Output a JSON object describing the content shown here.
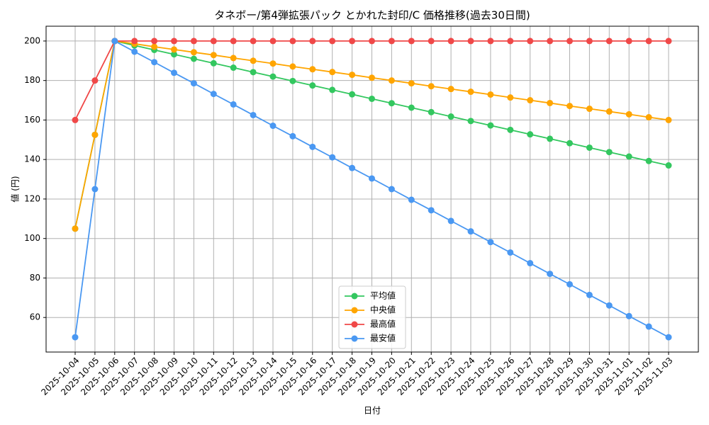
{
  "chart_data": {
    "type": "line",
    "title": "タネボー/第4弾拡張パック とかれた封印/C 価格推移(過去30日間)",
    "x_label": "日付",
    "y_label": "値 (円)",
    "categories": [
      "2025-10-04",
      "2025-10-05",
      "2025-10-06",
      "2025-10-07",
      "2025-10-08",
      "2025-10-09",
      "2025-10-10",
      "2025-10-11",
      "2025-10-12",
      "2025-10-13",
      "2025-10-14",
      "2025-10-15",
      "2025-10-16",
      "2025-10-17",
      "2025-10-18",
      "2025-10-19",
      "2025-10-20",
      "2025-10-21",
      "2025-10-22",
      "2025-10-23",
      "2025-10-24",
      "2025-10-25",
      "2025-10-26",
      "2025-10-27",
      "2025-10-28",
      "2025-10-29",
      "2025-10-30",
      "2025-10-31",
      "2025-11-01",
      "2025-11-02",
      "2025-11-03"
    ],
    "series": [
      {
        "name": "平均値",
        "color": "#33c75f",
        "values": [
          105,
          152.5,
          200,
          197.75,
          195.5,
          193.25,
          191,
          188.75,
          186.5,
          184.25,
          182,
          179.75,
          177.5,
          175.25,
          173,
          170.75,
          168.5,
          166.25,
          164,
          161.75,
          159.5,
          157.25,
          155,
          152.75,
          150.5,
          148.25,
          146,
          143.75,
          141.5,
          139.25,
          137
        ]
      },
      {
        "name": "中央値",
        "color": "#ffa500",
        "values": [
          105,
          152.5,
          200,
          198.6,
          197.1,
          195.7,
          194.3,
          192.9,
          191.4,
          190,
          188.6,
          187.1,
          185.7,
          184.3,
          182.9,
          181.4,
          180,
          178.6,
          177.1,
          175.7,
          174.3,
          172.9,
          171.4,
          170,
          168.6,
          167.1,
          165.7,
          164.3,
          162.9,
          161.4,
          160
        ]
      },
      {
        "name": "最高値",
        "color": "#f04848",
        "values": [
          160,
          180,
          200,
          200,
          200,
          200,
          200,
          200,
          200,
          200,
          200,
          200,
          200,
          200,
          200,
          200,
          200,
          200,
          200,
          200,
          200,
          200,
          200,
          200,
          200,
          200,
          200,
          200,
          200,
          200,
          200
        ]
      },
      {
        "name": "最安値",
        "color": "#4a98f2",
        "values": [
          50,
          125,
          200,
          194.6,
          189.3,
          183.9,
          178.6,
          173.2,
          167.9,
          162.5,
          157.1,
          151.8,
          146.4,
          141.1,
          135.7,
          130.4,
          125,
          119.6,
          114.3,
          108.9,
          103.6,
          98.2,
          92.9,
          87.5,
          82.1,
          76.8,
          71.4,
          66.1,
          60.7,
          55.4,
          50
        ]
      }
    ],
    "ylim": [
      42.5,
      207.5
    ],
    "yticks": [
      60,
      80,
      100,
      120,
      140,
      160,
      180,
      200
    ],
    "grid": true,
    "legend": "lower center"
  }
}
